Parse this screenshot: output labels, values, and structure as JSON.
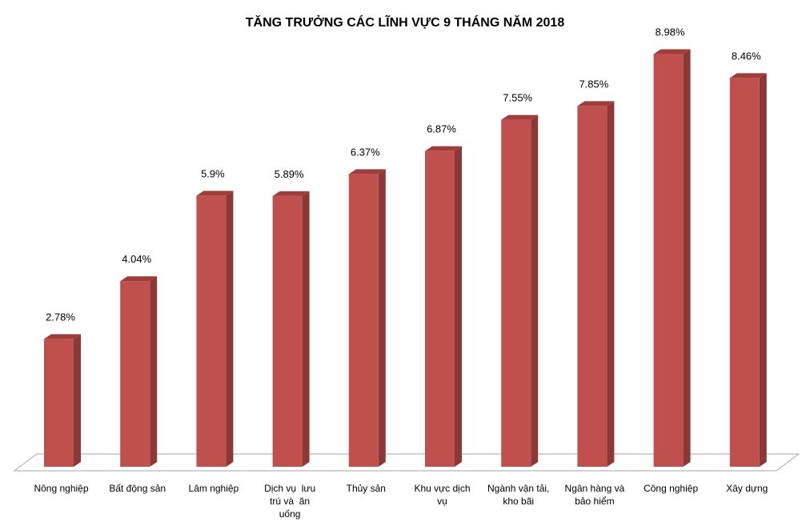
{
  "chart_data": {
    "type": "bar",
    "title": "TĂNG TRƯỞNG CÁC LĨNH VỰC 9 THÁNG NĂM 2018",
    "categories": [
      [
        "Nông nghiệp"
      ],
      [
        "Bất động sản"
      ],
      [
        "Lâm nghiệp"
      ],
      [
        "Dịch vụ  lưu",
        "trú và  ăn",
        "uống"
      ],
      [
        "Thủy sản"
      ],
      [
        "Khu vực dịch",
        "vụ"
      ],
      [
        "Ngành vận tải,",
        "kho bãi"
      ],
      [
        "Ngân hàng và",
        "bảo hiểm"
      ],
      [
        "Công nghiệp"
      ],
      [
        "Xây dựng"
      ]
    ],
    "values": [
      2.78,
      4.04,
      5.9,
      5.89,
      6.37,
      6.87,
      7.55,
      7.85,
      8.98,
      8.46
    ],
    "value_labels": [
      "2.78%",
      "4.04%",
      "5.9%",
      "5.89%",
      "6.37%",
      "6.87%",
      "7.55%",
      "7.85%",
      "8.98%",
      "8.46%"
    ],
    "ylim": [
      0,
      9
    ],
    "grid": false,
    "style": "3d-column",
    "colors": {
      "bar_front": "#c0504d",
      "bar_side": "#8c3836",
      "bar_top": "#9e3e3b",
      "floor_stroke": "#a6a6a6"
    }
  }
}
